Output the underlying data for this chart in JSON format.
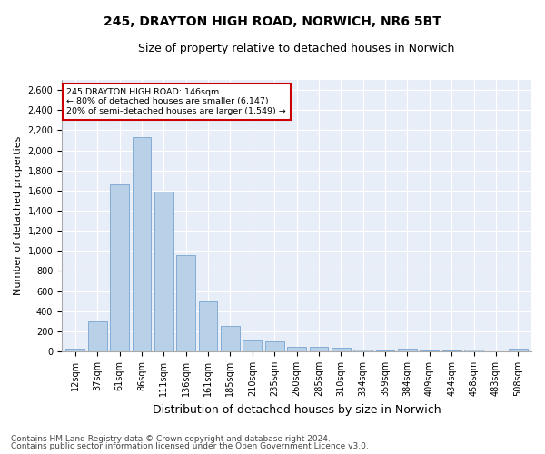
{
  "title": "245, DRAYTON HIGH ROAD, NORWICH, NR6 5BT",
  "subtitle": "Size of property relative to detached houses in Norwich",
  "xlabel": "Distribution of detached houses by size in Norwich",
  "ylabel": "Number of detached properties",
  "footer_line1": "Contains HM Land Registry data © Crown copyright and database right 2024.",
  "footer_line2": "Contains public sector information licensed under the Open Government Licence v3.0.",
  "categories": [
    "12sqm",
    "37sqm",
    "61sqm",
    "86sqm",
    "111sqm",
    "136sqm",
    "161sqm",
    "185sqm",
    "210sqm",
    "235sqm",
    "260sqm",
    "285sqm",
    "310sqm",
    "334sqm",
    "359sqm",
    "384sqm",
    "409sqm",
    "434sqm",
    "458sqm",
    "483sqm",
    "508sqm"
  ],
  "values": [
    25,
    295,
    1665,
    2130,
    1590,
    960,
    500,
    250,
    120,
    100,
    50,
    45,
    35,
    20,
    10,
    30,
    10,
    10,
    20,
    5,
    25
  ],
  "bar_color": "#b8d0e8",
  "bar_edge_color": "#6699cc",
  "annotation_box_text": "245 DRAYTON HIGH ROAD: 146sqm\n← 80% of detached houses are smaller (6,147)\n20% of semi-detached houses are larger (1,549) →",
  "annotation_box_color": "#ffffff",
  "annotation_box_edgecolor": "#cc0000",
  "ylim": [
    0,
    2700
  ],
  "yticks": [
    0,
    200,
    400,
    600,
    800,
    1000,
    1200,
    1400,
    1600,
    1800,
    2000,
    2200,
    2400,
    2600
  ],
  "bg_color": "#e8eef8",
  "fig_bg_color": "#ffffff",
  "grid_color": "#ffffff",
  "title_fontsize": 10,
  "subtitle_fontsize": 9,
  "axis_label_fontsize": 8,
  "tick_fontsize": 7,
  "footer_fontsize": 6.5
}
